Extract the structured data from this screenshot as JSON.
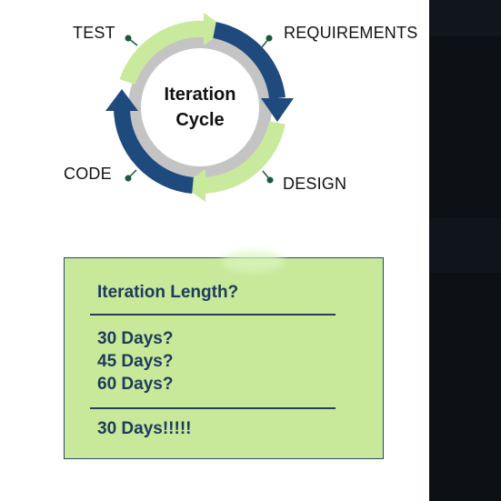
{
  "diagram": {
    "center_title_line1": "Iteration",
    "center_title_line2": "Cycle",
    "labels": {
      "test": "TEST",
      "requirements": "REQUIREMENTS",
      "design": "DESIGN",
      "code": "CODE"
    },
    "colors": {
      "light_arrow": "#c9ea9d",
      "dark_arrow": "#1e4a7e",
      "inner_ring": "#c4c4c4",
      "dot": "#1b5a3a"
    }
  },
  "box": {
    "heading": "Iteration Length?",
    "options": [
      "30 Days?",
      "45 Days?",
      "60 Days?"
    ],
    "answer": "30 Days!!!!!",
    "colors": {
      "fill": "#c8e89a",
      "text": "#1d3a5c"
    }
  }
}
